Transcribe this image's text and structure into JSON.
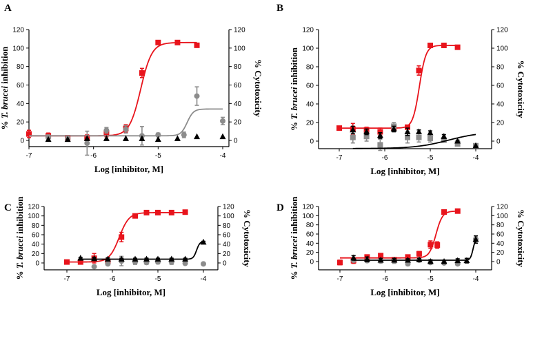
{
  "figure": {
    "xlabel": "Log [inhibitor, M]",
    "ylabel_left_pre": "% ",
    "ylabel_left_italic": "T. brucei",
    "ylabel_left_post": " inhibition",
    "ylabel_right": "% Cytotoxicity",
    "colors": {
      "red": "#e8141c",
      "grey": "#8c8c8c",
      "black": "#000000"
    }
  },
  "chart_data": [
    {
      "type": "scatter",
      "panel": "A",
      "xlabel": "Log [inhibitor, M]",
      "ylabel": "% T. brucei inhibition",
      "ylabel_right": "% Cytotoxicity",
      "xlim": [
        -7,
        -4
      ],
      "ylim_left": [
        -10,
        120
      ],
      "ylim_right": [
        -10,
        120
      ],
      "xticks": [
        "-7",
        "-6",
        "-5",
        "-4"
      ],
      "yticks_left": [
        "0",
        "20",
        "40",
        "60",
        "80",
        "100",
        "120"
      ],
      "yticks_right": [
        "0",
        "20",
        "40",
        "60",
        "80",
        "100",
        "120"
      ],
      "series": [
        {
          "color": "#e8141c",
          "marker": "square",
          "axis": "left",
          "x": [
            -7.0,
            -6.7,
            -6.4,
            -6.1,
            -5.8,
            -5.5,
            -5.25,
            -5.0,
            -4.7,
            -4.4
          ],
          "y": [
            7,
            5,
            3,
            3,
            8,
            13,
            73,
            106,
            106,
            103
          ],
          "err": [
            4,
            3,
            2,
            3,
            4,
            4,
            5,
            2,
            2,
            2
          ],
          "fit": {
            "bottom": 5,
            "top": 106,
            "logIC50": -5.27,
            "hill": 5,
            "x_range": [
              -7.0,
              -4.4
            ]
          }
        },
        {
          "color": "#8c8c8c",
          "marker": "circle",
          "axis": "left",
          "x": [
            -6.7,
            -6.4,
            -6.1,
            -5.8,
            -5.5,
            -5.25,
            -5.0,
            -4.6,
            -4.4,
            -4.0
          ],
          "y": [
            3,
            2,
            -3,
            11,
            12,
            5,
            6,
            6,
            48,
            21
          ],
          "err": [
            3,
            3,
            13,
            3,
            4,
            10,
            2,
            3,
            10,
            4
          ],
          "fit": {
            "bottom": 5,
            "top": 34,
            "logIC50": -4.55,
            "hill": 9,
            "x_range": [
              -7.0,
              -4.0
            ]
          }
        },
        {
          "color": "#000000",
          "marker": "triangle",
          "axis": "right",
          "x": [
            -6.7,
            -6.4,
            -6.1,
            -5.8,
            -5.5,
            -5.25,
            -5.0,
            -4.7,
            -4.4,
            -4.0
          ],
          "y": [
            1,
            1,
            2,
            2,
            2,
            2,
            1,
            2,
            4,
            4
          ],
          "err": [
            0,
            0,
            0,
            0,
            0,
            0,
            0,
            0,
            0,
            0
          ]
        }
      ]
    },
    {
      "type": "scatter",
      "panel": "B",
      "xlabel": "Log [inhibitor, M]",
      "ylabel": "% T. brucei inhibition",
      "ylabel_right": "% Cytotoxicity",
      "xlim": [
        -7,
        -4
      ],
      "ylim_left": [
        -10,
        120
      ],
      "ylim_right": [
        -10,
        120
      ],
      "xticks": [
        "-7",
        "-6",
        "-5",
        "-4"
      ],
      "yticks_left": [
        "0",
        "20",
        "40",
        "60",
        "80",
        "100",
        "120"
      ],
      "yticks_right": [
        "0",
        "20",
        "40",
        "60",
        "80",
        "100",
        "120"
      ],
      "series": [
        {
          "color": "#e8141c",
          "marker": "square",
          "axis": "left",
          "x": [
            -7.0,
            -6.7,
            -6.4,
            -6.1,
            -5.8,
            -5.5,
            -5.25,
            -5.0,
            -4.7,
            -4.4
          ],
          "y": [
            14,
            13,
            12,
            10,
            14,
            15,
            76,
            103,
            103,
            101
          ],
          "err": [
            2,
            6,
            3,
            4,
            3,
            2,
            5,
            1,
            1,
            1
          ],
          "fit": {
            "bottom": 14,
            "top": 103,
            "logIC50": -5.24,
            "hill": 6,
            "x_range": [
              -7.0,
              -4.4
            ]
          }
        },
        {
          "color": "#8c8c8c",
          "marker": "square",
          "axis": "left",
          "x": [
            -6.7,
            -6.4,
            -6.1,
            -5.8,
            -5.5,
            -5.25,
            -5.0,
            -4.7,
            -4.4,
            -4.0
          ],
          "y": [
            4,
            5,
            -4,
            16,
            4,
            4,
            3,
            1,
            -3,
            -5
          ],
          "err": [
            6,
            5,
            6,
            4,
            6,
            5,
            4,
            2,
            2,
            1
          ]
        },
        {
          "color": "#000000",
          "marker": "triangle",
          "axis": "right",
          "x": [
            -6.7,
            -6.4,
            -6.1,
            -5.8,
            -5.5,
            -5.25,
            -5.0,
            -4.7,
            -4.4,
            -4.0
          ],
          "y": [
            12,
            10,
            6,
            13,
            10,
            10,
            9,
            5,
            0,
            -5
          ],
          "err": [
            4,
            3,
            3,
            3,
            4,
            2,
            2,
            2,
            1,
            0
          ],
          "fit": {
            "bottom": -8,
            "top": 10,
            "logIC50": -4.6,
            "hill": 1.2,
            "x_range": [
              -6.7,
              -4.0
            ]
          }
        }
      ]
    },
    {
      "type": "scatter",
      "panel": "C",
      "xlabel": "Log [inhibitor, M]",
      "ylabel": "% T. brucei inhibition",
      "ylabel_right": "% Cytotoxicity",
      "xlim": [
        -7,
        -4
      ],
      "ylim_left": [
        -10,
        120
      ],
      "ylim_right": [
        -10,
        120
      ],
      "xticks": [
        "-7",
        "-6",
        "-5",
        "-4"
      ],
      "yticks_left": [
        "0",
        "20",
        "40",
        "60",
        "80",
        "100",
        "120"
      ],
      "yticks_right": [
        "0",
        "20",
        "40",
        "60",
        "80",
        "100",
        "120"
      ],
      "series": [
        {
          "color": "#e8141c",
          "marker": "square",
          "axis": "left",
          "x": [
            -7.0,
            -6.7,
            -6.4,
            -6.1,
            -5.8,
            -5.5,
            -5.25,
            -5.0,
            -4.7,
            -4.4
          ],
          "y": [
            2,
            2,
            10,
            3,
            55,
            100,
            107,
            107,
            107,
            108
          ],
          "err": [
            2,
            4,
            10,
            5,
            10,
            4,
            2,
            1,
            1,
            1
          ],
          "fit": {
            "bottom": 2,
            "top": 107,
            "logIC50": -5.85,
            "hill": 4,
            "x_range": [
              -7.0,
              -4.4
            ]
          }
        },
        {
          "color": "#8c8c8c",
          "marker": "circle",
          "axis": "left",
          "x": [
            -6.4,
            -6.1,
            -5.8,
            -5.5,
            -5.25,
            -5.0,
            -4.7,
            -4.4,
            -4.0
          ],
          "y": [
            -8,
            -2,
            4,
            2,
            1,
            2,
            2,
            -1,
            -2
          ],
          "err": [
            1,
            3,
            10,
            5,
            4,
            4,
            5,
            1,
            1
          ]
        },
        {
          "color": "#000000",
          "marker": "triangle",
          "axis": "right",
          "x": [
            -6.7,
            -6.4,
            -6.1,
            -5.8,
            -5.5,
            -5.25,
            -5.0,
            -4.7,
            -4.4,
            -4.0
          ],
          "y": [
            10,
            9,
            8,
            8,
            8,
            8,
            8,
            8,
            8,
            44
          ],
          "err": [
            2,
            3,
            3,
            2,
            2,
            2,
            2,
            2,
            2,
            2
          ],
          "fit": {
            "bottom": 8,
            "top": 46,
            "logIC50": -4.15,
            "hill": 12,
            "x_range": [
              -6.7,
              -4.0
            ]
          }
        }
      ]
    },
    {
      "type": "scatter",
      "panel": "D",
      "xlabel": "Log [inhibitor, M]",
      "ylabel": "% T. brucei inhibition",
      "ylabel_right": "% Cytotoxicity",
      "xlim": [
        -7,
        -4
      ],
      "ylim_left": [
        -10,
        120
      ],
      "ylim_right": [
        -10,
        120
      ],
      "xticks": [
        "-7",
        "-6",
        "-5",
        "-4"
      ],
      "yticks_left": [
        "0",
        "20",
        "40",
        "60",
        "80",
        "100",
        "120"
      ],
      "yticks_right": [
        "0",
        "20",
        "40",
        "60",
        "80",
        "100",
        "120"
      ],
      "series": [
        {
          "color": "#e8141c",
          "marker": "square",
          "axis": "left",
          "x": [
            -7.0,
            -6.7,
            -6.4,
            -6.1,
            -5.8,
            -5.5,
            -5.25,
            -5.0,
            -4.85,
            -4.7,
            -4.4
          ],
          "y": [
            -2,
            2,
            10,
            13,
            4,
            10,
            17,
            37,
            36,
            108,
            110
          ],
          "err": [
            5,
            6,
            3,
            3,
            4,
            3,
            5,
            8,
            7,
            1,
            1
          ],
          "fit": {
            "bottom": 8,
            "top": 110,
            "logIC50": -4.88,
            "hill": 6,
            "x_range": [
              -7.0,
              -4.4
            ]
          }
        },
        {
          "color": "#8c8c8c",
          "marker": "circle",
          "axis": "left",
          "x": [
            -6.7,
            -6.4,
            -6.1,
            -5.8,
            -5.5,
            -5.25,
            -5.0,
            -4.7,
            -4.4,
            -4.0
          ],
          "y": [
            3,
            2,
            1,
            1,
            -5,
            3,
            -2,
            -3,
            -5,
            49
          ],
          "err": [
            4,
            4,
            4,
            5,
            4,
            3,
            3,
            3,
            3,
            2
          ]
        },
        {
          "color": "#000000",
          "marker": "triangle",
          "axis": "right",
          "x": [
            -6.7,
            -6.4,
            -6.1,
            -5.8,
            -5.5,
            -5.25,
            -5.0,
            -4.7,
            -4.4,
            -4.2,
            -4.0
          ],
          "y": [
            8,
            5,
            3,
            3,
            3,
            4,
            0,
            0,
            2,
            2,
            48
          ],
          "err": [
            5,
            5,
            4,
            4,
            3,
            3,
            4,
            3,
            4,
            5,
            8
          ],
          "fit": {
            "bottom": 3,
            "top": 52,
            "logIC50": -4.06,
            "hill": 15,
            "x_range": [
              -6.7,
              -4.0
            ]
          }
        }
      ]
    }
  ]
}
